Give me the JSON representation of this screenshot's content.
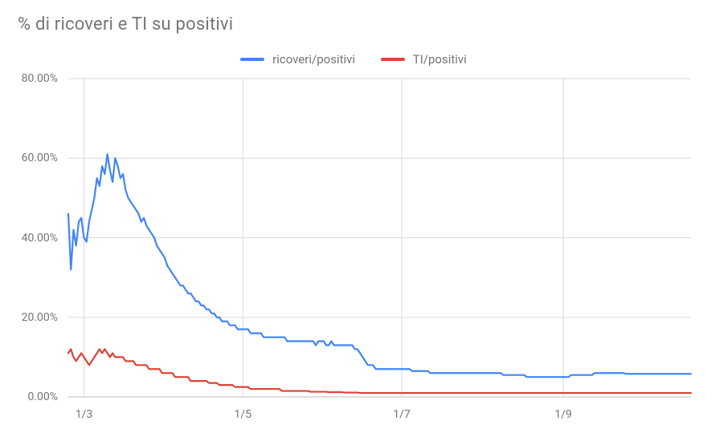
{
  "chart": {
    "type": "line",
    "title": "% di ricoveri e TI su positivi",
    "title_fontsize": 22,
    "title_color": "#757575",
    "background_color": "#ffffff",
    "font_family": "Roboto, Helvetica Neue, Arial, sans-serif",
    "x_total_points": 240,
    "x_axis": {
      "ticks": [
        {
          "label": "1/3",
          "index": 6
        },
        {
          "label": "1/5",
          "index": 67
        },
        {
          "label": "1/7",
          "index": 128
        },
        {
          "label": "1/9",
          "index": 190
        }
      ],
      "gridline_at_ticks": true
    },
    "y_axis": {
      "min": 0,
      "max": 80,
      "ticks": [
        0,
        20,
        40,
        60,
        80
      ],
      "tick_format_suffix": ".00%",
      "gridline_at_ticks": true
    },
    "grid_color": "#d9d9d9",
    "baseline_color": "#bdbdbd",
    "label_fontsize": 14,
    "label_color": "#757575",
    "legend": {
      "position": "top-center",
      "fontsize": 15,
      "items": [
        {
          "label": "ricoveri/positivi",
          "color": "#4285f4"
        },
        {
          "label": "TI/positivi",
          "color": "#db4437"
        }
      ]
    },
    "series": [
      {
        "name": "ricoveri/positivi",
        "color": "#4285f4",
        "line_width": 2.2,
        "values": [
          46,
          32,
          42,
          38,
          44,
          45,
          40,
          39,
          44,
          47,
          50,
          55,
          53,
          58,
          56,
          61,
          57,
          54,
          60,
          58,
          55,
          56,
          52,
          50,
          49,
          48,
          47,
          46,
          44,
          45,
          43,
          42,
          41,
          40,
          38,
          37,
          36,
          35,
          33,
          32,
          31,
          30,
          29,
          28,
          28,
          27,
          26,
          26,
          25,
          24,
          24,
          23,
          23,
          22,
          22,
          21,
          21,
          20,
          20,
          19,
          19,
          19,
          18,
          18,
          18,
          17,
          17,
          17,
          17,
          17,
          16,
          16,
          16,
          16,
          16,
          15,
          15,
          15,
          15,
          15,
          15,
          15,
          15,
          15,
          14,
          14,
          14,
          14,
          14,
          14,
          14,
          14,
          14,
          14,
          14,
          13,
          14,
          14,
          14,
          13,
          13,
          14,
          13,
          13,
          13,
          13,
          13,
          13,
          13,
          13,
          12,
          12,
          11,
          10,
          9,
          8,
          8,
          8,
          7,
          7,
          7,
          7,
          7,
          7,
          7,
          7,
          7,
          7,
          7,
          7,
          7,
          7,
          6.5,
          6.5,
          6.5,
          6.5,
          6.5,
          6.5,
          6.5,
          6,
          6,
          6,
          6,
          6,
          6,
          6,
          6,
          6,
          6,
          6,
          6,
          6,
          6,
          6,
          6,
          6,
          6,
          6,
          6,
          6,
          6,
          6,
          6,
          6,
          6,
          6,
          6,
          5.5,
          5.5,
          5.5,
          5.5,
          5.5,
          5.5,
          5.5,
          5.5,
          5.5,
          5,
          5,
          5,
          5,
          5,
          5,
          5,
          5,
          5,
          5,
          5,
          5,
          5,
          5,
          5,
          5,
          5,
          5.5,
          5.5,
          5.5,
          5.5,
          5.5,
          5.5,
          5.5,
          5.5,
          5.5,
          6,
          6,
          6,
          6,
          6,
          6,
          6,
          6,
          6,
          6,
          6,
          6,
          5.8,
          5.8,
          5.8,
          5.8,
          5.8,
          5.8,
          5.8,
          5.8,
          5.8,
          5.8,
          5.8,
          5.8,
          5.8,
          5.8,
          5.8,
          5.8,
          5.8,
          5.8,
          5.8,
          5.8,
          5.8,
          5.8,
          5.8,
          5.8,
          5.8,
          5.8
        ]
      },
      {
        "name": "TI/positivi",
        "color": "#db4437",
        "line_width": 2.2,
        "values": [
          11,
          12,
          10,
          9,
          10,
          11,
          10,
          9,
          8,
          9,
          10,
          11,
          12,
          11,
          12,
          11,
          10,
          11,
          10,
          10,
          10,
          10,
          9,
          9,
          9,
          9,
          8,
          8,
          8,
          8,
          8,
          7,
          7,
          7,
          7,
          7,
          6,
          6,
          6,
          6,
          6,
          5,
          5,
          5,
          5,
          5,
          5,
          4,
          4,
          4,
          4,
          4,
          4,
          4,
          3.5,
          3.5,
          3.5,
          3.5,
          3,
          3,
          3,
          3,
          3,
          3,
          2.5,
          2.5,
          2.5,
          2.5,
          2.5,
          2.5,
          2,
          2,
          2,
          2,
          2,
          2,
          2,
          2,
          2,
          2,
          2,
          2,
          1.5,
          1.5,
          1.5,
          1.5,
          1.5,
          1.5,
          1.5,
          1.5,
          1.5,
          1.5,
          1.5,
          1.3,
          1.3,
          1.3,
          1.3,
          1.3,
          1.3,
          1.3,
          1.2,
          1.2,
          1.2,
          1.2,
          1.2,
          1.2,
          1.1,
          1.1,
          1.1,
          1.1,
          1.1,
          1.1,
          1,
          1,
          1,
          1,
          1,
          1,
          1,
          1,
          1,
          1,
          1,
          1,
          1,
          1,
          1,
          1,
          1,
          1,
          1,
          1,
          1,
          1,
          1,
          1,
          1,
          1,
          1,
          1,
          1,
          1,
          1,
          1,
          1,
          1,
          1,
          1,
          1,
          1,
          1,
          1,
          1,
          1,
          1,
          1,
          1,
          1,
          1,
          1,
          1,
          1,
          1,
          1,
          1,
          1,
          1,
          1,
          1,
          1,
          1,
          1,
          1,
          1,
          1,
          1,
          1,
          1,
          1,
          1,
          1,
          1,
          1,
          1,
          1,
          1,
          1,
          1,
          1,
          1,
          1,
          1,
          1,
          1,
          1,
          1,
          1,
          1,
          1,
          1,
          1,
          1,
          1,
          1,
          1,
          1,
          1,
          1,
          1,
          1,
          1,
          1,
          1,
          1,
          1,
          1,
          1,
          1,
          1,
          1,
          1,
          1,
          1,
          1,
          1,
          1,
          1,
          1,
          1,
          1,
          1,
          1,
          1,
          1,
          1,
          1,
          1,
          1,
          1,
          1
        ]
      }
    ]
  }
}
